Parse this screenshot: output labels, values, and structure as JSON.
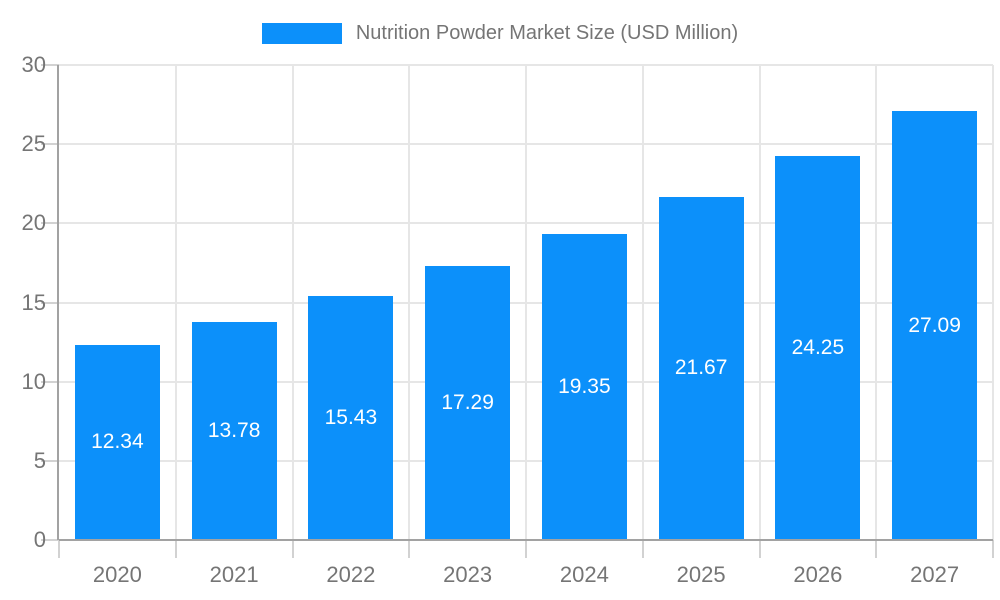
{
  "legend": {
    "label": "Nutrition Powder Market Size (USD Million)"
  },
  "chart_data": {
    "type": "bar",
    "title": "Nutrition Powder Market Size (USD Million)",
    "series_name": "Nutrition Powder Market Size (USD Million)",
    "categories": [
      "2020",
      "2021",
      "2022",
      "2023",
      "2024",
      "2025",
      "2026",
      "2027"
    ],
    "values": [
      12.34,
      13.78,
      15.43,
      17.29,
      19.35,
      21.67,
      24.25,
      27.09
    ],
    "value_labels": [
      "12.34",
      "13.78",
      "15.43",
      "17.29",
      "19.35",
      "21.67",
      "24.25",
      "27.09"
    ],
    "xlabel": "",
    "ylabel": "",
    "ylim": [
      0,
      30
    ],
    "yticks": [
      0,
      5,
      10,
      15,
      20,
      25,
      30
    ],
    "grid": true,
    "legend_position": "top-center",
    "value_label_position": "center-of-bar"
  },
  "colors": {
    "bar": "#0c90fa",
    "grid": "#e6e6e6",
    "tick": "#d2d2d2",
    "axis": "#a2a2a2",
    "text": "#757575",
    "value_label": "#ffffff",
    "background": "#ffffff"
  }
}
